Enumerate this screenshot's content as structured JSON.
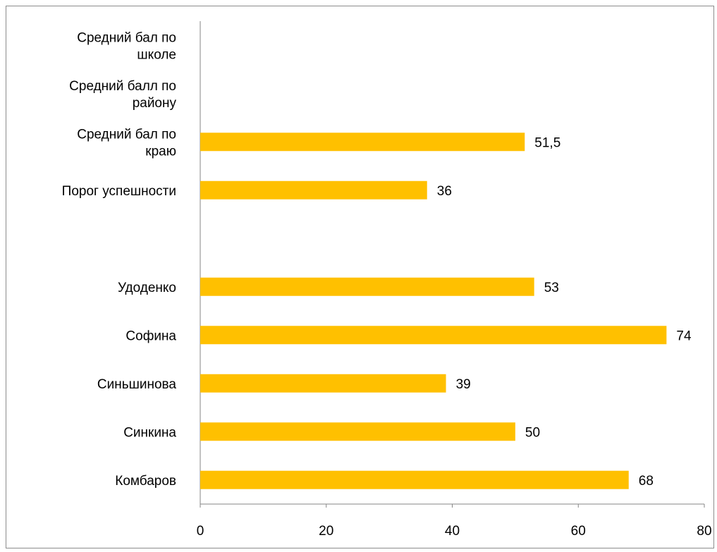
{
  "chart_data": {
    "type": "bar",
    "orientation": "horizontal",
    "categories": [
      [
        "Средний бал по",
        "школе"
      ],
      [
        "Средний балл по",
        "району"
      ],
      [
        "Средний бал по",
        "краю"
      ],
      [
        "Порог успешности"
      ],
      [
        ""
      ],
      [
        "Удоденко"
      ],
      [
        "Софина"
      ],
      [
        "Синьшинова"
      ],
      [
        "Синкина"
      ],
      [
        "Комбаров"
      ]
    ],
    "values": [
      null,
      null,
      51.5,
      36,
      null,
      53,
      74,
      39,
      50,
      68
    ],
    "data_labels": [
      "",
      "",
      "51,5",
      "36",
      "",
      "53",
      "74",
      "39",
      "50",
      "68"
    ],
    "xlim": [
      0,
      80
    ],
    "x_ticks": [
      0,
      20,
      40,
      60,
      80
    ],
    "bar_color": "#FFC000",
    "axis_color": "#868686",
    "grid": false,
    "legend": "none"
  }
}
